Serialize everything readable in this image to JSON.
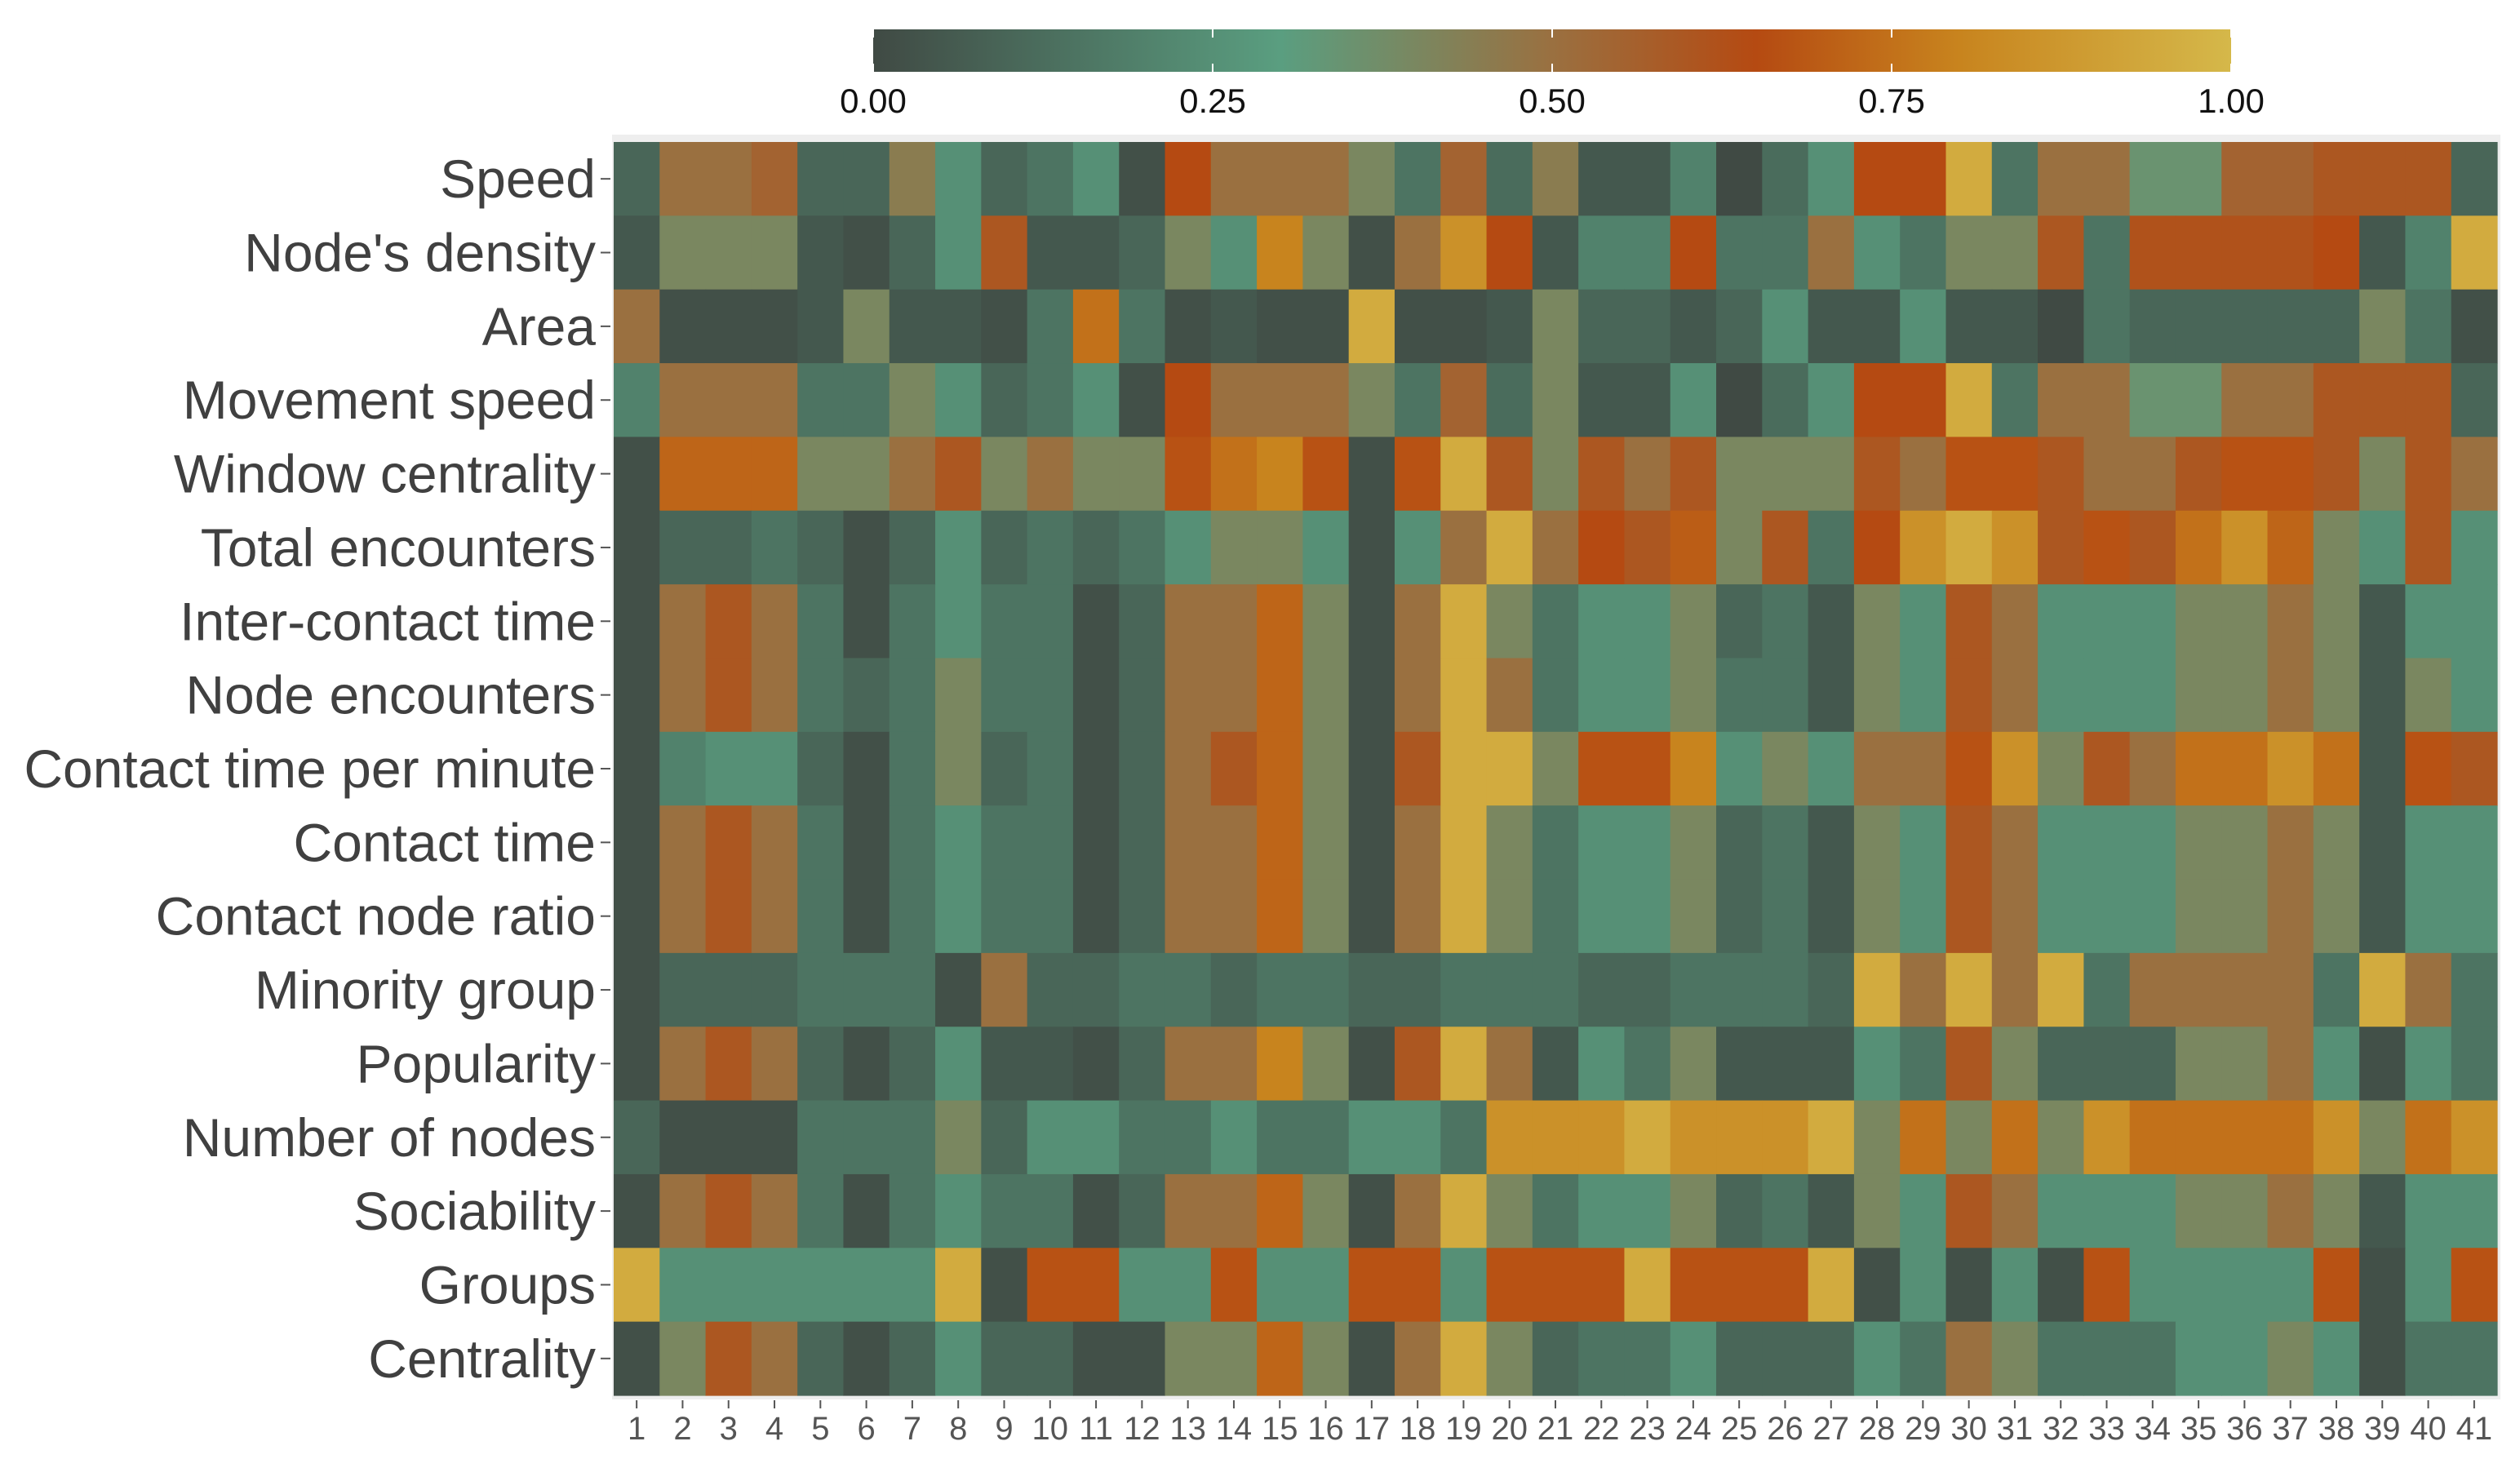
{
  "chart_data": {
    "type": "heatmap",
    "title": "",
    "xlabel": "",
    "ylabel": "",
    "rows": [
      "Speed",
      "Node's density",
      "Area",
      "Movement speed",
      "Window centrality",
      "Total encounters",
      "Inter-contact time",
      "Node encounters",
      "Contact time per minute",
      "Contact time",
      "Contact node ratio",
      "Minority group",
      "Popularity",
      "Number of nodes",
      "Sociability",
      "Groups",
      "Centrality"
    ],
    "columns": [
      "1",
      "2",
      "3",
      "4",
      "5",
      "6",
      "7",
      "8",
      "9",
      "10",
      "11",
      "12",
      "13",
      "14",
      "15",
      "16",
      "17",
      "18",
      "19",
      "20",
      "21",
      "22",
      "23",
      "24",
      "25",
      "26",
      "27",
      "28",
      "29",
      "30",
      "31",
      "32",
      "33",
      "34",
      "35",
      "36",
      "37",
      "38",
      "39",
      "40",
      "41"
    ],
    "values": [
      [
        0.1,
        0.5,
        0.5,
        0.55,
        0.1,
        0.1,
        0.45,
        0.25,
        0.1,
        0.15,
        0.25,
        0.02,
        0.65,
        0.5,
        0.5,
        0.5,
        0.4,
        0.15,
        0.55,
        0.12,
        0.45,
        0.05,
        0.05,
        0.2,
        0.0,
        0.12,
        0.25,
        0.65,
        0.65,
        0.95,
        0.15,
        0.5,
        0.5,
        0.35,
        0.35,
        0.55,
        0.55,
        0.6,
        0.6,
        0.6,
        0.1
      ],
      [
        0.05,
        0.4,
        0.4,
        0.4,
        0.05,
        0.02,
        0.1,
        0.25,
        0.6,
        0.05,
        0.05,
        0.1,
        0.4,
        0.25,
        0.8,
        0.4,
        0.02,
        0.5,
        0.85,
        0.65,
        0.05,
        0.2,
        0.2,
        0.65,
        0.15,
        0.15,
        0.5,
        0.25,
        0.15,
        0.4,
        0.4,
        0.6,
        0.15,
        0.62,
        0.62,
        0.62,
        0.62,
        0.65,
        0.05,
        0.2,
        0.95
      ],
      [
        0.5,
        0.02,
        0.02,
        0.02,
        0.05,
        0.4,
        0.05,
        0.05,
        0.02,
        0.15,
        0.75,
        0.15,
        0.02,
        0.05,
        0.02,
        0.02,
        0.95,
        0.02,
        0.02,
        0.05,
        0.4,
        0.1,
        0.1,
        0.05,
        0.1,
        0.25,
        0.05,
        0.05,
        0.25,
        0.05,
        0.05,
        0.0,
        0.15,
        0.1,
        0.1,
        0.1,
        0.1,
        0.1,
        0.4,
        0.15,
        0.02
      ],
      [
        0.2,
        0.5,
        0.5,
        0.5,
        0.15,
        0.15,
        0.4,
        0.25,
        0.1,
        0.15,
        0.25,
        0.02,
        0.65,
        0.5,
        0.5,
        0.5,
        0.4,
        0.15,
        0.55,
        0.12,
        0.4,
        0.05,
        0.05,
        0.25,
        0.0,
        0.12,
        0.25,
        0.65,
        0.65,
        0.95,
        0.15,
        0.5,
        0.5,
        0.35,
        0.35,
        0.5,
        0.5,
        0.6,
        0.6,
        0.6,
        0.1
      ],
      [
        0.02,
        0.72,
        0.72,
        0.72,
        0.4,
        0.4,
        0.5,
        0.6,
        0.4,
        0.5,
        0.4,
        0.4,
        0.67,
        0.75,
        0.8,
        0.67,
        0.02,
        0.67,
        0.95,
        0.6,
        0.4,
        0.6,
        0.5,
        0.6,
        0.4,
        0.4,
        0.4,
        0.6,
        0.5,
        0.67,
        0.67,
        0.6,
        0.5,
        0.5,
        0.6,
        0.67,
        0.67,
        0.6,
        0.4,
        0.6,
        0.5
      ],
      [
        0.02,
        0.1,
        0.1,
        0.15,
        0.1,
        0.02,
        0.1,
        0.25,
        0.1,
        0.15,
        0.1,
        0.15,
        0.25,
        0.4,
        0.4,
        0.25,
        0.02,
        0.25,
        0.5,
        0.95,
        0.5,
        0.65,
        0.6,
        0.7,
        0.4,
        0.6,
        0.15,
        0.65,
        0.85,
        0.95,
        0.85,
        0.6,
        0.67,
        0.6,
        0.75,
        0.85,
        0.72,
        0.4,
        0.25,
        0.6,
        0.25
      ],
      [
        0.02,
        0.5,
        0.6,
        0.5,
        0.15,
        0.02,
        0.15,
        0.25,
        0.15,
        0.15,
        0.02,
        0.1,
        0.5,
        0.5,
        0.72,
        0.4,
        0.02,
        0.5,
        0.95,
        0.4,
        0.15,
        0.25,
        0.25,
        0.4,
        0.1,
        0.15,
        0.05,
        0.4,
        0.25,
        0.6,
        0.5,
        0.25,
        0.25,
        0.25,
        0.4,
        0.4,
        0.5,
        0.4,
        0.05,
        0.25,
        0.25
      ],
      [
        0.02,
        0.5,
        0.6,
        0.5,
        0.15,
        0.1,
        0.15,
        0.4,
        0.15,
        0.15,
        0.02,
        0.1,
        0.5,
        0.5,
        0.72,
        0.4,
        0.02,
        0.5,
        0.95,
        0.5,
        0.15,
        0.25,
        0.25,
        0.4,
        0.15,
        0.15,
        0.05,
        0.4,
        0.25,
        0.6,
        0.5,
        0.25,
        0.25,
        0.25,
        0.4,
        0.4,
        0.5,
        0.4,
        0.05,
        0.4,
        0.25
      ],
      [
        0.02,
        0.2,
        0.25,
        0.25,
        0.1,
        0.02,
        0.15,
        0.4,
        0.1,
        0.15,
        0.02,
        0.1,
        0.5,
        0.6,
        0.72,
        0.4,
        0.02,
        0.6,
        0.95,
        0.95,
        0.4,
        0.67,
        0.67,
        0.8,
        0.25,
        0.4,
        0.25,
        0.5,
        0.5,
        0.67,
        0.85,
        0.4,
        0.6,
        0.5,
        0.75,
        0.75,
        0.85,
        0.75,
        0.05,
        0.67,
        0.6
      ],
      [
        0.02,
        0.5,
        0.6,
        0.5,
        0.15,
        0.02,
        0.15,
        0.25,
        0.15,
        0.15,
        0.02,
        0.1,
        0.5,
        0.5,
        0.72,
        0.4,
        0.02,
        0.5,
        0.95,
        0.4,
        0.15,
        0.25,
        0.25,
        0.4,
        0.1,
        0.15,
        0.05,
        0.4,
        0.25,
        0.6,
        0.5,
        0.25,
        0.25,
        0.25,
        0.4,
        0.4,
        0.5,
        0.4,
        0.05,
        0.25,
        0.25
      ],
      [
        0.02,
        0.5,
        0.6,
        0.5,
        0.15,
        0.02,
        0.15,
        0.25,
        0.15,
        0.15,
        0.02,
        0.1,
        0.5,
        0.5,
        0.72,
        0.4,
        0.02,
        0.5,
        0.95,
        0.4,
        0.15,
        0.25,
        0.25,
        0.4,
        0.1,
        0.15,
        0.05,
        0.4,
        0.25,
        0.6,
        0.5,
        0.25,
        0.25,
        0.25,
        0.4,
        0.4,
        0.5,
        0.4,
        0.05,
        0.25,
        0.25
      ],
      [
        0.02,
        0.1,
        0.1,
        0.1,
        0.15,
        0.15,
        0.15,
        0.02,
        0.5,
        0.1,
        0.1,
        0.15,
        0.15,
        0.1,
        0.15,
        0.15,
        0.1,
        0.1,
        0.15,
        0.15,
        0.15,
        0.1,
        0.1,
        0.15,
        0.15,
        0.15,
        0.1,
        0.95,
        0.5,
        0.95,
        0.5,
        0.95,
        0.15,
        0.5,
        0.5,
        0.5,
        0.5,
        0.15,
        0.95,
        0.5,
        0.15
      ],
      [
        0.02,
        0.5,
        0.6,
        0.5,
        0.1,
        0.02,
        0.1,
        0.25,
        0.05,
        0.05,
        0.02,
        0.1,
        0.5,
        0.5,
        0.8,
        0.4,
        0.02,
        0.6,
        0.95,
        0.5,
        0.05,
        0.25,
        0.15,
        0.4,
        0.05,
        0.05,
        0.05,
        0.25,
        0.15,
        0.6,
        0.4,
        0.1,
        0.1,
        0.1,
        0.4,
        0.4,
        0.5,
        0.25,
        0.02,
        0.25,
        0.15
      ],
      [
        0.1,
        0.02,
        0.02,
        0.02,
        0.15,
        0.15,
        0.15,
        0.4,
        0.1,
        0.25,
        0.25,
        0.15,
        0.15,
        0.25,
        0.15,
        0.15,
        0.25,
        0.25,
        0.15,
        0.85,
        0.85,
        0.85,
        0.95,
        0.85,
        0.85,
        0.85,
        0.95,
        0.4,
        0.75,
        0.4,
        0.75,
        0.4,
        0.85,
        0.75,
        0.75,
        0.75,
        0.75,
        0.85,
        0.4,
        0.75,
        0.85
      ],
      [
        0.02,
        0.5,
        0.6,
        0.5,
        0.15,
        0.02,
        0.15,
        0.25,
        0.15,
        0.15,
        0.02,
        0.1,
        0.5,
        0.5,
        0.72,
        0.4,
        0.02,
        0.5,
        0.95,
        0.4,
        0.15,
        0.25,
        0.25,
        0.4,
        0.1,
        0.15,
        0.05,
        0.4,
        0.25,
        0.6,
        0.5,
        0.25,
        0.25,
        0.25,
        0.4,
        0.4,
        0.5,
        0.4,
        0.05,
        0.25,
        0.25
      ],
      [
        0.95,
        0.25,
        0.25,
        0.25,
        0.25,
        0.25,
        0.25,
        0.95,
        0.02,
        0.67,
        0.67,
        0.25,
        0.25,
        0.67,
        0.25,
        0.25,
        0.67,
        0.67,
        0.25,
        0.67,
        0.67,
        0.67,
        0.95,
        0.67,
        0.67,
        0.67,
        0.95,
        0.02,
        0.25,
        0.02,
        0.25,
        0.02,
        0.67,
        0.25,
        0.25,
        0.25,
        0.25,
        0.67,
        0.02,
        0.25,
        0.67
      ],
      [
        0.02,
        0.4,
        0.6,
        0.5,
        0.1,
        0.02,
        0.1,
        0.25,
        0.1,
        0.1,
        0.02,
        0.02,
        0.4,
        0.4,
        0.72,
        0.4,
        0.02,
        0.5,
        0.95,
        0.4,
        0.1,
        0.15,
        0.15,
        0.25,
        0.1,
        0.1,
        0.1,
        0.25,
        0.15,
        0.5,
        0.4,
        0.15,
        0.15,
        0.15,
        0.25,
        0.25,
        0.4,
        0.25,
        0.02,
        0.15,
        0.15
      ]
    ],
    "colorbar": {
      "min": 0,
      "max": 1,
      "ticks": [
        "0.00",
        "0.25",
        "0.50",
        "0.75",
        "1.00"
      ],
      "tick_values": [
        0,
        0.25,
        0.5,
        0.75,
        1
      ],
      "stops": [
        [
          0,
          "#404a44"
        ],
        [
          0.3,
          "#5a9e80"
        ],
        [
          0.5,
          "#9a7040"
        ],
        [
          0.65,
          "#b54a12"
        ],
        [
          0.8,
          "#c8841e"
        ],
        [
          1,
          "#d5b84a"
        ]
      ]
    }
  }
}
